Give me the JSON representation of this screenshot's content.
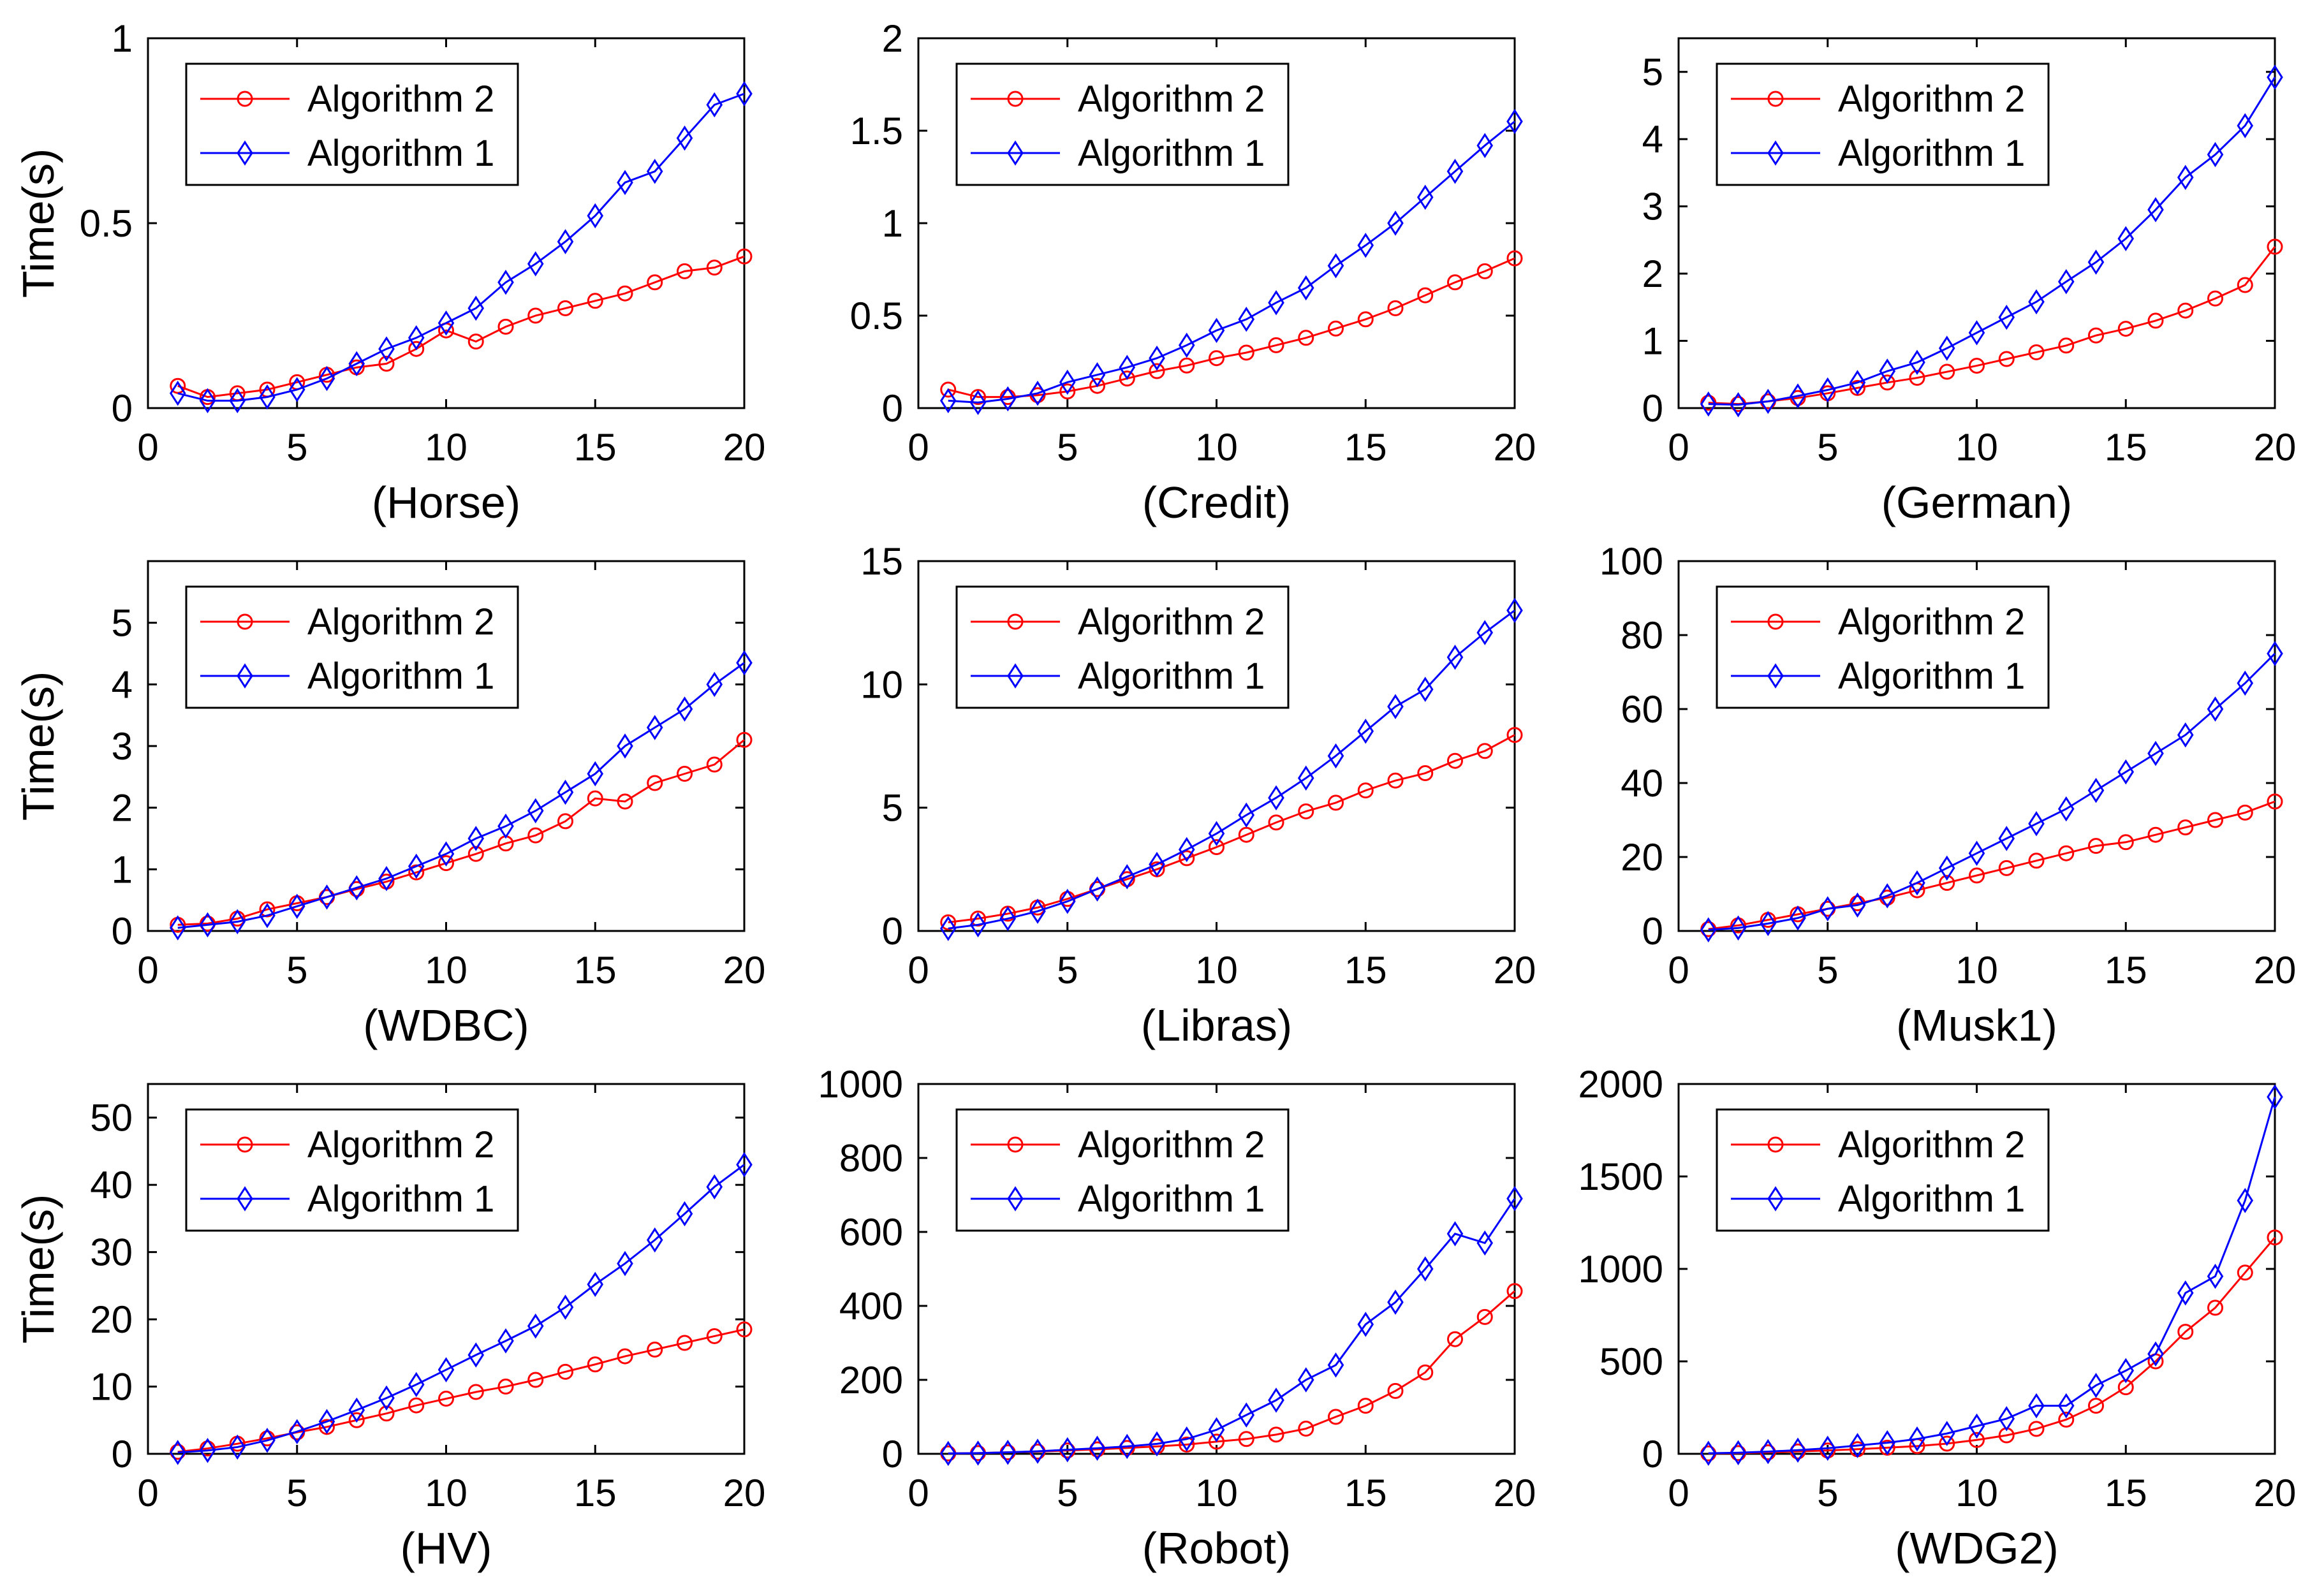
{
  "figure": {
    "colors": {
      "algorithm2": "#ff0000",
      "algorithm1": "#0000ff",
      "axis": "#000000",
      "background": "#ffffff"
    }
  },
  "chart_data": [
    {
      "type": "line",
      "panel": "Horse",
      "xlabel": "(Horse)",
      "ylabel": "Time(s)",
      "xlim": [
        0,
        20
      ],
      "ylim": [
        0,
        1
      ],
      "xticks": [
        0,
        5,
        10,
        15,
        20
      ],
      "yticks": [
        0,
        0.5,
        1
      ],
      "xtick_labels": [
        "0",
        "5",
        "10",
        "15",
        "20"
      ],
      "ytick_labels": [
        "0",
        "0.5",
        "1"
      ],
      "legend": "top-left",
      "x": [
        1,
        2,
        3,
        4,
        5,
        6,
        7,
        8,
        9,
        10,
        11,
        12,
        13,
        14,
        15,
        16,
        17,
        18,
        19,
        20
      ],
      "series": [
        {
          "name": "Algorithm 2",
          "marker": "circle",
          "color": "#ff0000",
          "values": [
            0.06,
            0.03,
            0.04,
            0.05,
            0.07,
            0.09,
            0.11,
            0.12,
            0.16,
            0.21,
            0.18,
            0.22,
            0.25,
            0.27,
            0.29,
            0.31,
            0.34,
            0.37,
            0.38,
            0.41
          ]
        },
        {
          "name": "Algorithm 1",
          "marker": "diamond",
          "color": "#0000ff",
          "values": [
            0.04,
            0.02,
            0.02,
            0.03,
            0.05,
            0.08,
            0.12,
            0.16,
            0.19,
            0.23,
            0.27,
            0.34,
            0.39,
            0.45,
            0.52,
            0.61,
            0.64,
            0.73,
            0.82,
            0.85
          ]
        }
      ]
    },
    {
      "type": "line",
      "panel": "Credit",
      "xlabel": "(Credit)",
      "ylabel": "",
      "xlim": [
        0,
        20
      ],
      "ylim": [
        0,
        2
      ],
      "xticks": [
        0,
        5,
        10,
        15,
        20
      ],
      "yticks": [
        0,
        0.5,
        1,
        1.5,
        2
      ],
      "xtick_labels": [
        "0",
        "5",
        "10",
        "15",
        "20"
      ],
      "ytick_labels": [
        "0",
        "0.5",
        "1",
        "1.5",
        "2"
      ],
      "legend": "top-left",
      "x": [
        1,
        2,
        3,
        4,
        5,
        6,
        7,
        8,
        9,
        10,
        11,
        12,
        13,
        14,
        15,
        16,
        17,
        18,
        19,
        20
      ],
      "series": [
        {
          "name": "Algorithm 2",
          "marker": "circle",
          "color": "#ff0000",
          "values": [
            0.1,
            0.06,
            0.06,
            0.07,
            0.09,
            0.12,
            0.16,
            0.2,
            0.23,
            0.27,
            0.3,
            0.34,
            0.38,
            0.43,
            0.48,
            0.54,
            0.61,
            0.68,
            0.74,
            0.81
          ]
        },
        {
          "name": "Algorithm 1",
          "marker": "diamond",
          "color": "#0000ff",
          "values": [
            0.04,
            0.03,
            0.05,
            0.08,
            0.14,
            0.18,
            0.22,
            0.27,
            0.34,
            0.42,
            0.48,
            0.57,
            0.65,
            0.77,
            0.88,
            1.0,
            1.14,
            1.28,
            1.42,
            1.55
          ]
        }
      ]
    },
    {
      "type": "line",
      "panel": "German",
      "xlabel": "(German)",
      "ylabel": "",
      "xlim": [
        0,
        20
      ],
      "ylim": [
        0,
        5.5
      ],
      "xticks": [
        0,
        5,
        10,
        15,
        20
      ],
      "yticks": [
        0,
        1,
        2,
        3,
        4,
        5
      ],
      "xtick_labels": [
        "0",
        "5",
        "10",
        "15",
        "20"
      ],
      "ytick_labels": [
        "0",
        "1",
        "2",
        "3",
        "4",
        "5"
      ],
      "legend": "top-left",
      "x": [
        1,
        2,
        3,
        4,
        5,
        6,
        7,
        8,
        9,
        10,
        11,
        12,
        13,
        14,
        15,
        16,
        17,
        18,
        19,
        20
      ],
      "series": [
        {
          "name": "Algorithm 2",
          "marker": "circle",
          "color": "#ff0000",
          "values": [
            0.08,
            0.06,
            0.1,
            0.15,
            0.22,
            0.3,
            0.38,
            0.45,
            0.54,
            0.63,
            0.73,
            0.83,
            0.93,
            1.08,
            1.18,
            1.3,
            1.45,
            1.63,
            1.83,
            2.4
          ]
        },
        {
          "name": "Algorithm 1",
          "marker": "diamond",
          "color": "#0000ff",
          "values": [
            0.06,
            0.05,
            0.1,
            0.18,
            0.27,
            0.38,
            0.55,
            0.68,
            0.89,
            1.12,
            1.35,
            1.58,
            1.88,
            2.17,
            2.52,
            2.95,
            3.43,
            3.77,
            4.2,
            4.92
          ]
        }
      ]
    },
    {
      "type": "line",
      "panel": "WDBC",
      "xlabel": "(WDBC)",
      "ylabel": "Time(s)",
      "xlim": [
        0,
        20
      ],
      "ylim": [
        0,
        6
      ],
      "xticks": [
        0,
        5,
        10,
        15,
        20
      ],
      "yticks": [
        0,
        1,
        2,
        3,
        4,
        5
      ],
      "xtick_labels": [
        "0",
        "5",
        "10",
        "15",
        "20"
      ],
      "ytick_labels": [
        "0",
        "1",
        "2",
        "3",
        "4",
        "5"
      ],
      "legend": "top-left",
      "x": [
        1,
        2,
        3,
        4,
        5,
        6,
        7,
        8,
        9,
        10,
        11,
        12,
        13,
        14,
        15,
        16,
        17,
        18,
        19,
        20
      ],
      "series": [
        {
          "name": "Algorithm 2",
          "marker": "circle",
          "color": "#ff0000",
          "values": [
            0.1,
            0.12,
            0.2,
            0.35,
            0.45,
            0.55,
            0.68,
            0.8,
            0.95,
            1.1,
            1.25,
            1.42,
            1.55,
            1.78,
            2.15,
            2.1,
            2.4,
            2.55,
            2.7,
            3.1
          ]
        },
        {
          "name": "Algorithm 1",
          "marker": "diamond",
          "color": "#0000ff",
          "values": [
            0.05,
            0.1,
            0.15,
            0.25,
            0.4,
            0.55,
            0.7,
            0.85,
            1.05,
            1.25,
            1.5,
            1.7,
            1.95,
            2.25,
            2.55,
            3.0,
            3.3,
            3.6,
            4.0,
            4.35
          ]
        }
      ]
    },
    {
      "type": "line",
      "panel": "Libras",
      "xlabel": "(Libras)",
      "ylabel": "",
      "xlim": [
        0,
        20
      ],
      "ylim": [
        0,
        15
      ],
      "xticks": [
        0,
        5,
        10,
        15,
        20
      ],
      "yticks": [
        0,
        5,
        10,
        15
      ],
      "xtick_labels": [
        "0",
        "5",
        "10",
        "15",
        "20"
      ],
      "ytick_labels": [
        "0",
        "5",
        "10",
        "15"
      ],
      "legend": "top-left",
      "x": [
        1,
        2,
        3,
        4,
        5,
        6,
        7,
        8,
        9,
        10,
        11,
        12,
        13,
        14,
        15,
        16,
        17,
        18,
        19,
        20
      ],
      "series": [
        {
          "name": "Algorithm 2",
          "marker": "circle",
          "color": "#ff0000",
          "values": [
            0.35,
            0.5,
            0.7,
            0.95,
            1.3,
            1.7,
            2.1,
            2.5,
            2.95,
            3.4,
            3.9,
            4.4,
            4.85,
            5.2,
            5.7,
            6.1,
            6.4,
            6.9,
            7.3,
            7.95
          ]
        },
        {
          "name": "Algorithm 1",
          "marker": "diamond",
          "color": "#0000ff",
          "values": [
            0.1,
            0.25,
            0.5,
            0.8,
            1.2,
            1.7,
            2.2,
            2.7,
            3.3,
            3.95,
            4.7,
            5.4,
            6.2,
            7.1,
            8.1,
            9.1,
            9.8,
            11.1,
            12.1,
            13.0
          ]
        }
      ]
    },
    {
      "type": "line",
      "panel": "Musk1",
      "xlabel": "(Musk1)",
      "ylabel": "",
      "xlim": [
        0,
        20
      ],
      "ylim": [
        0,
        100
      ],
      "xticks": [
        0,
        5,
        10,
        15,
        20
      ],
      "yticks": [
        0,
        20,
        40,
        60,
        80,
        100
      ],
      "xtick_labels": [
        "0",
        "5",
        "10",
        "15",
        "20"
      ],
      "ytick_labels": [
        "0",
        "20",
        "40",
        "60",
        "80",
        "100"
      ],
      "legend": "top-left",
      "x": [
        1,
        2,
        3,
        4,
        5,
        6,
        7,
        8,
        9,
        10,
        11,
        12,
        13,
        14,
        15,
        16,
        17,
        18,
        19,
        20
      ],
      "series": [
        {
          "name": "Algorithm 2",
          "marker": "circle",
          "color": "#ff0000",
          "values": [
            0.5,
            1.5,
            3,
            4.5,
            6,
            7.5,
            9,
            11,
            13,
            15,
            17,
            19,
            21,
            23,
            24,
            26,
            28,
            30,
            32,
            35
          ]
        },
        {
          "name": "Algorithm 1",
          "marker": "diamond",
          "color": "#0000ff",
          "values": [
            0.3,
            0.8,
            2,
            3.5,
            6,
            7,
            9.5,
            13,
            17,
            21,
            25,
            29,
            33,
            38,
            43,
            48,
            53,
            60,
            67,
            75
          ]
        }
      ]
    },
    {
      "type": "line",
      "panel": "HV",
      "xlabel": "(HV)",
      "ylabel": "Time(s)",
      "xlim": [
        0,
        20
      ],
      "ylim": [
        0,
        55
      ],
      "xticks": [
        0,
        5,
        10,
        15,
        20
      ],
      "yticks": [
        0,
        10,
        20,
        30,
        40,
        50
      ],
      "xtick_labels": [
        "0",
        "5",
        "10",
        "15",
        "20"
      ],
      "ytick_labels": [
        "0",
        "10",
        "20",
        "30",
        "40",
        "50"
      ],
      "legend": "top-left",
      "x": [
        1,
        2,
        3,
        4,
        5,
        6,
        7,
        8,
        9,
        10,
        11,
        12,
        13,
        14,
        15,
        16,
        17,
        18,
        19,
        20
      ],
      "series": [
        {
          "name": "Algorithm 2",
          "marker": "circle",
          "color": "#ff0000",
          "values": [
            0.3,
            0.8,
            1.5,
            2.3,
            3.2,
            4.0,
            5.0,
            6.0,
            7.2,
            8.2,
            9.2,
            10.0,
            11.0,
            12.2,
            13.3,
            14.5,
            15.5,
            16.5,
            17.5,
            18.5
          ]
        },
        {
          "name": "Algorithm 1",
          "marker": "diamond",
          "color": "#0000ff",
          "values": [
            0.2,
            0.5,
            1.0,
            2.0,
            3.3,
            4.8,
            6.5,
            8.3,
            10.3,
            12.5,
            14.7,
            16.8,
            19.0,
            21.8,
            25.2,
            28.3,
            31.8,
            35.7,
            39.7,
            43.0
          ]
        }
      ]
    },
    {
      "type": "line",
      "panel": "Robot",
      "xlabel": "(Robot)",
      "ylabel": "",
      "xlim": [
        0,
        20
      ],
      "ylim": [
        0,
        1000
      ],
      "xticks": [
        0,
        5,
        10,
        15,
        20
      ],
      "yticks": [
        0,
        200,
        400,
        600,
        800,
        1000
      ],
      "xtick_labels": [
        "0",
        "5",
        "10",
        "15",
        "20"
      ],
      "ytick_labels": [
        "0",
        "200",
        "400",
        "600",
        "800",
        "1000"
      ],
      "legend": "top-left",
      "x": [
        1,
        2,
        3,
        4,
        5,
        6,
        7,
        8,
        9,
        10,
        11,
        12,
        13,
        14,
        15,
        16,
        17,
        18,
        19,
        20
      ],
      "series": [
        {
          "name": "Algorithm 2",
          "marker": "circle",
          "color": "#ff0000",
          "values": [
            1,
            2,
            4,
            6,
            9,
            12,
            16,
            20,
            25,
            33,
            40,
            52,
            68,
            100,
            130,
            170,
            220,
            310,
            370,
            440
          ]
        },
        {
          "name": "Algorithm 1",
          "marker": "diamond",
          "color": "#0000ff",
          "values": [
            1,
            2,
            4,
            7,
            11,
            15,
            20,
            27,
            40,
            65,
            105,
            145,
            200,
            240,
            350,
            410,
            500,
            595,
            570,
            690
          ]
        }
      ]
    },
    {
      "type": "line",
      "panel": "WDG2",
      "xlabel": "(WDG2)",
      "ylabel": "",
      "xlim": [
        0,
        20
      ],
      "ylim": [
        0,
        2000
      ],
      "xticks": [
        0,
        5,
        10,
        15,
        20
      ],
      "yticks": [
        0,
        500,
        1000,
        1500,
        2000
      ],
      "xtick_labels": [
        "0",
        "5",
        "10",
        "15",
        "20"
      ],
      "ytick_labels": [
        "0",
        "500",
        "1000",
        "1500",
        "2000"
      ],
      "legend": "top-left",
      "x": [
        1,
        2,
        3,
        4,
        5,
        6,
        7,
        8,
        9,
        10,
        11,
        12,
        13,
        14,
        15,
        16,
        17,
        18,
        19,
        20
      ],
      "series": [
        {
          "name": "Algorithm 2",
          "marker": "circle",
          "color": "#ff0000",
          "values": [
            2,
            4,
            8,
            13,
            18,
            25,
            33,
            42,
            55,
            75,
            100,
            135,
            185,
            260,
            360,
            500,
            660,
            790,
            980,
            1170
          ]
        },
        {
          "name": "Algorithm 1",
          "marker": "diamond",
          "color": "#0000ff",
          "values": [
            3,
            6,
            12,
            20,
            30,
            45,
            60,
            80,
            110,
            150,
            190,
            260,
            260,
            370,
            450,
            540,
            870,
            960,
            1370,
            1930
          ]
        }
      ]
    }
  ]
}
